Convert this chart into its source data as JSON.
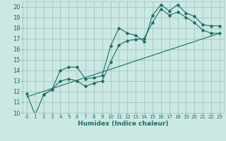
{
  "xlabel": "Humidex (Indice chaleur)",
  "bg_color": "#cce8e4",
  "grid_color": "#9bbfbb",
  "line_color": "#1a6e60",
  "xlim": [
    -0.5,
    23.5
  ],
  "ylim": [
    10,
    20.5
  ],
  "yticks": [
    10,
    11,
    12,
    13,
    14,
    15,
    16,
    17,
    18,
    19,
    20
  ],
  "xticks": [
    0,
    1,
    2,
    3,
    4,
    5,
    6,
    7,
    8,
    9,
    10,
    11,
    12,
    13,
    14,
    15,
    16,
    17,
    18,
    19,
    20,
    21,
    22,
    23
  ],
  "line1_x": [
    0,
    1,
    2,
    3,
    4,
    5,
    6,
    7,
    8,
    9,
    10,
    11,
    12,
    13,
    14,
    15,
    16,
    17,
    18,
    19,
    20,
    21,
    22,
    23
  ],
  "line1_y": [
    11.8,
    9.8,
    11.7,
    12.2,
    14.0,
    14.3,
    14.3,
    13.2,
    13.3,
    13.5,
    16.3,
    18.0,
    17.5,
    17.3,
    16.7,
    19.2,
    20.2,
    19.6,
    20.2,
    19.4,
    19.1,
    18.3,
    18.2,
    18.2
  ],
  "line2_x": [
    2,
    3,
    4,
    5,
    6,
    7,
    8,
    9,
    10,
    11,
    12,
    13,
    14,
    15,
    16,
    17,
    18,
    19,
    20,
    21,
    22,
    23
  ],
  "line2_y": [
    11.7,
    12.2,
    13.0,
    13.2,
    13.0,
    12.5,
    12.8,
    13.0,
    14.8,
    16.4,
    16.8,
    16.9,
    17.0,
    18.5,
    19.8,
    19.2,
    19.5,
    19.0,
    18.5,
    17.8,
    17.5,
    17.5
  ],
  "line3_x": [
    0,
    23
  ],
  "line3_y": [
    11.5,
    17.5
  ]
}
